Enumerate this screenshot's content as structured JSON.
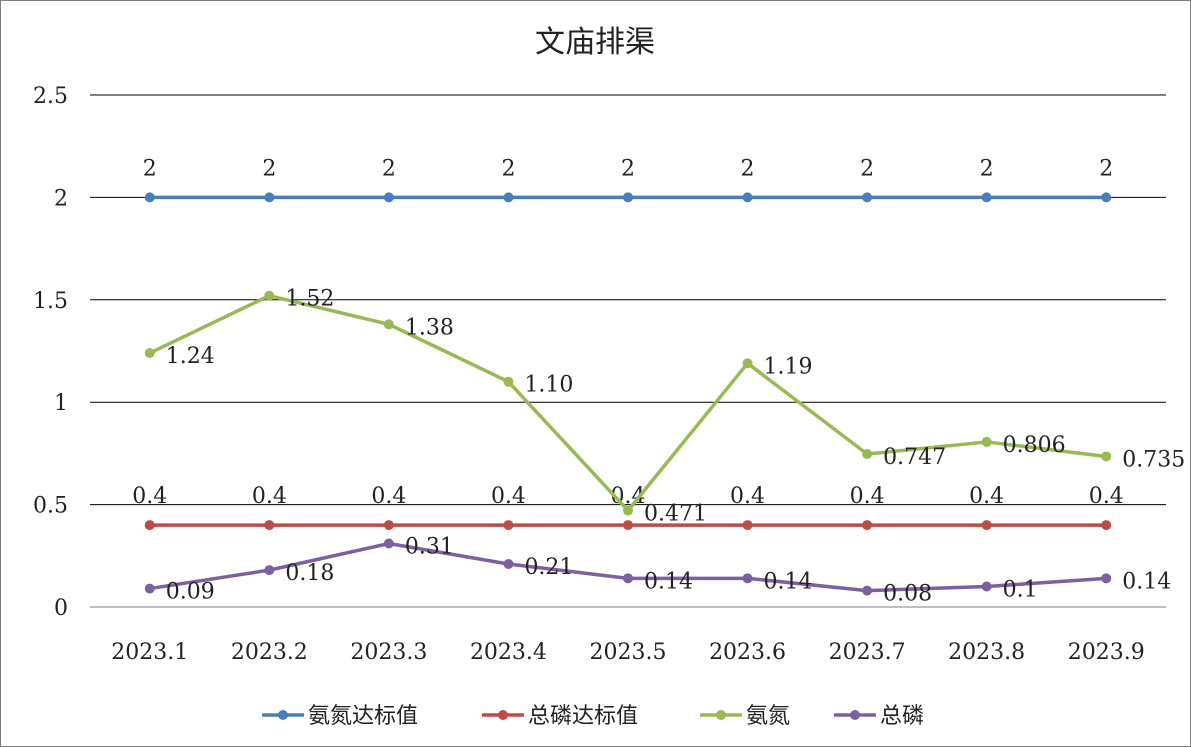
{
  "chart_data": {
    "type": "line",
    "title": "文庙排渠",
    "xlabel": "",
    "ylabel": "",
    "categories": [
      "2023.1",
      "2023.2",
      "2023.3",
      "2023.4",
      "2023.5",
      "2023.6",
      "2023.7",
      "2023.8",
      "2023.9"
    ],
    "ylim": [
      0,
      2.5
    ],
    "yticks": [
      "0",
      "0.5",
      "1",
      "1.5",
      "2",
      "2.5"
    ],
    "grid": true,
    "legend": "bottom",
    "series": [
      {
        "name": "氨氮达标值",
        "color": "#4a7ebb",
        "values": [
          2,
          2,
          2,
          2,
          2,
          2,
          2,
          2,
          2
        ],
        "labels": [
          "2",
          "2",
          "2",
          "2",
          "2",
          "2",
          "2",
          "2",
          "2"
        ],
        "label_position": "above"
      },
      {
        "name": "总磷达标值",
        "color": "#be4b48",
        "values": [
          0.4,
          0.4,
          0.4,
          0.4,
          0.4,
          0.4,
          0.4,
          0.4,
          0.4
        ],
        "labels": [
          "0.4",
          "0.4",
          "0.4",
          "0.4",
          "0.4",
          "0.4",
          "0.4",
          "0.4",
          "0.4"
        ],
        "label_position": "above"
      },
      {
        "name": "氨氮",
        "color": "#98b954",
        "values": [
          1.24,
          1.52,
          1.38,
          1.1,
          0.471,
          1.19,
          0.747,
          0.806,
          0.735
        ],
        "labels": [
          "1.24",
          "1.52",
          "1.38",
          "1.10",
          "0.471",
          "1.19",
          "0.747",
          "0.806",
          "0.735"
        ],
        "label_position": "right"
      },
      {
        "name": "总磷",
        "color": "#7d60a0",
        "values": [
          0.09,
          0.18,
          0.31,
          0.21,
          0.14,
          0.14,
          0.08,
          0.1,
          0.14
        ],
        "labels": [
          "0.09",
          "0.18",
          "0.31",
          "0.21",
          "0.14",
          "0.14",
          "0.08",
          "0.1",
          "0.14"
        ],
        "label_position": "right"
      }
    ]
  }
}
